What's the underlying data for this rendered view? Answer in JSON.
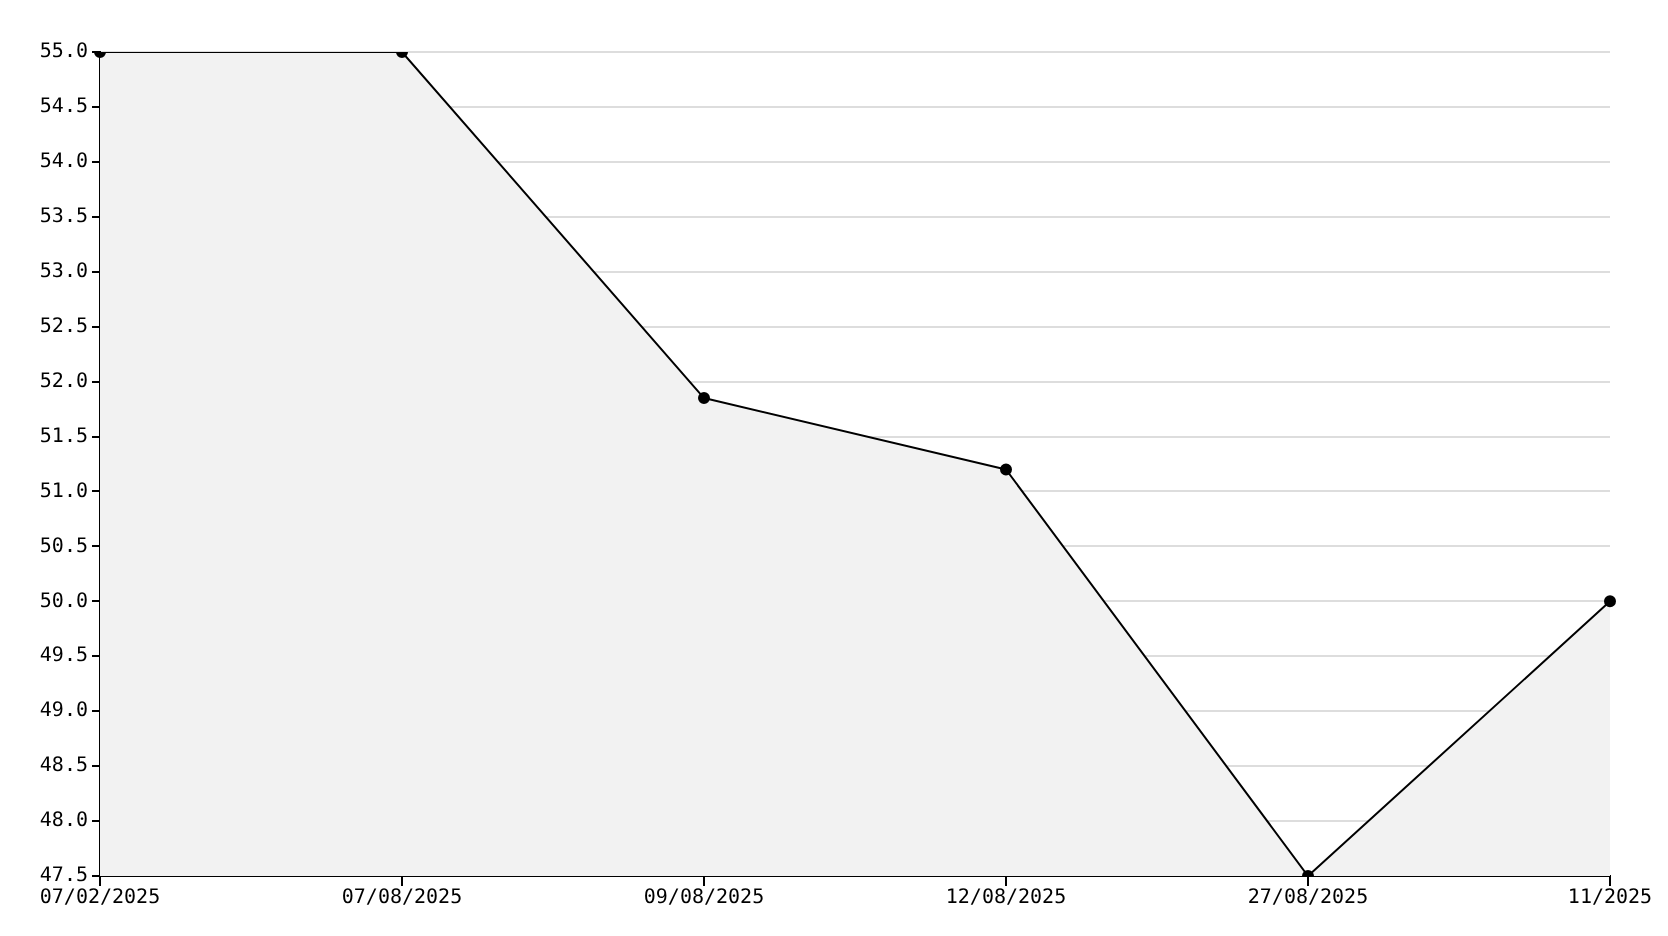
{
  "chart_data": {
    "type": "area",
    "categories": [
      "07/02/2025",
      "07/08/2025",
      "09/08/2025",
      "12/08/2025",
      "27/08/2025",
      "11/2025"
    ],
    "series": [
      {
        "color": "#000000",
        "values": [
          55.0,
          55.0,
          51.85,
          51.2,
          47.5,
          50.0
        ]
      }
    ],
    "ylim": [
      47.5,
      55.0
    ],
    "yticks": [
      {
        "value": 47.5,
        "label": "47.5"
      },
      {
        "value": 48,
        "label": "48.0"
      },
      {
        "value": 48.5,
        "label": "48.5"
      },
      {
        "value": 49,
        "label": "49.0"
      },
      {
        "value": 49.5,
        "label": "49.5"
      },
      {
        "value": 50,
        "label": "50.0"
      },
      {
        "value": 50.5,
        "label": "50.5"
      },
      {
        "value": 51,
        "label": "51.0"
      },
      {
        "value": 51.5,
        "label": "51.5"
      },
      {
        "value": 52,
        "label": "52.0"
      },
      {
        "value": 52.5,
        "label": "52.5"
      },
      {
        "value": 53,
        "label": "53.0"
      },
      {
        "value": 53.5,
        "label": "53.5"
      },
      {
        "value": 54,
        "label": "54.0"
      },
      {
        "value": 54.5,
        "label": "54.5"
      },
      {
        "value": 55,
        "label": "55.0"
      }
    ],
    "grid": "y",
    "legend": false,
    "marker": "circle"
  }
}
